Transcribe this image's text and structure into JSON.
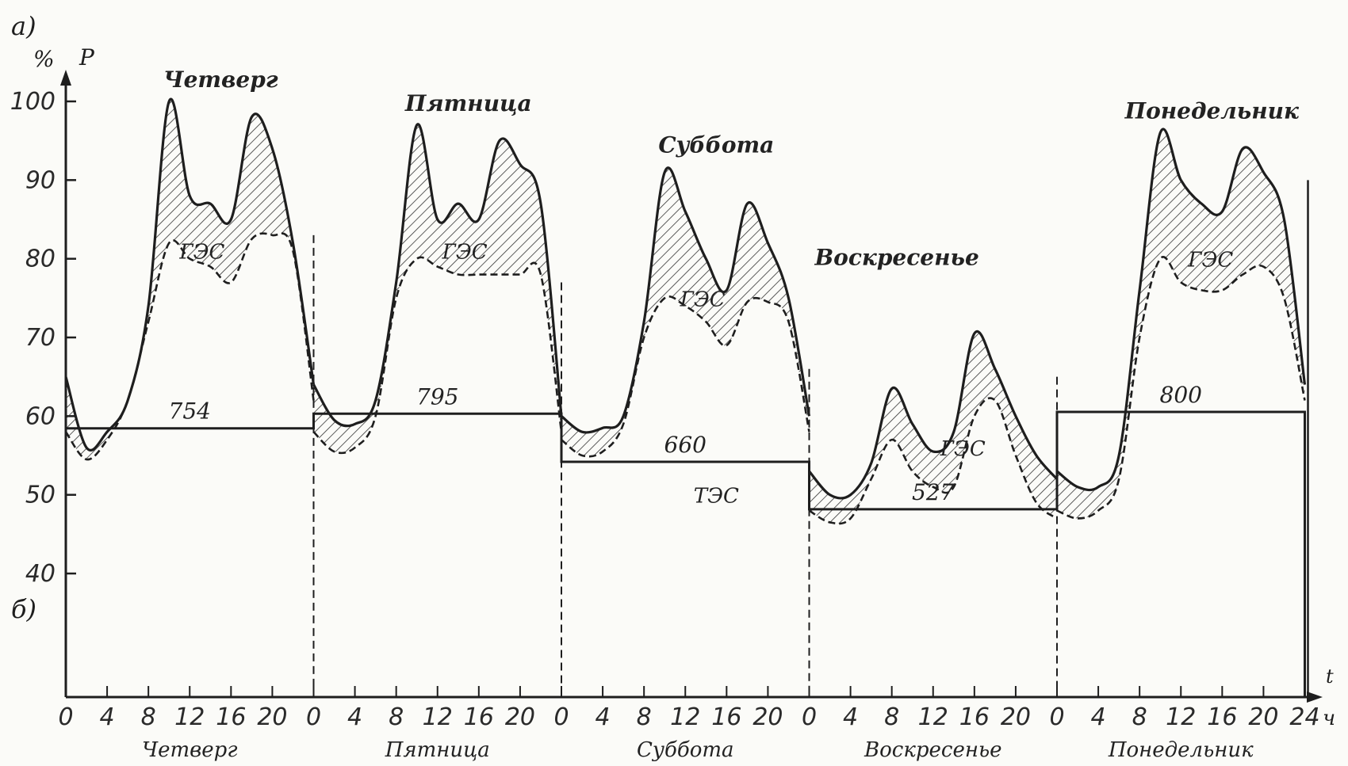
{
  "chart_data": {
    "type": "area",
    "panel_a_label": "а)",
    "panel_b_label": "б)",
    "y_unit": "%",
    "y_symbol": "P",
    "ylim": [
      40,
      100
    ],
    "y_ticks": [
      "40",
      "50",
      "60",
      "70",
      "80",
      "90",
      "100"
    ],
    "x_unit": "ч",
    "x_symbol": "t",
    "x_tick_labels": [
      "0",
      "4",
      "8",
      "12",
      "16",
      "20",
      "0",
      "4",
      "8",
      "12",
      "16",
      "20",
      "0",
      "4",
      "8",
      "12",
      "16",
      "20",
      "0",
      "4",
      "8",
      "12",
      "16",
      "20",
      "0",
      "4",
      "8",
      "12",
      "16",
      "20",
      "24"
    ],
    "area_labels": {
      "hydro": "ГЭС",
      "thermal": "ТЭС"
    },
    "grid": false,
    "days": [
      {
        "name_top": "Четверг",
        "name_bottom": "Четверг",
        "energy": "754",
        "hours": [
          0,
          2,
          4,
          6,
          8,
          10,
          12,
          14,
          16,
          18,
          20,
          22,
          24
        ],
        "total": [
          65,
          56,
          58,
          62,
          74,
          100,
          88,
          87,
          85,
          98,
          94,
          82,
          64
        ],
        "thermal": [
          58,
          54.5,
          57,
          62,
          72,
          82,
          80,
          79,
          77,
          82.5,
          83,
          81,
          62
        ]
      },
      {
        "name_top": "Пятница",
        "name_bottom": "Пятница",
        "energy": "795",
        "hours": [
          0,
          2,
          4,
          6,
          8,
          10,
          12,
          14,
          16,
          18,
          20,
          22,
          24
        ],
        "total": [
          64,
          59.5,
          59,
          62,
          77,
          97,
          85,
          87,
          85,
          95,
          92,
          87,
          60
        ],
        "thermal": [
          58,
          55.5,
          56,
          60,
          75,
          80,
          79,
          78,
          78,
          78,
          78,
          78,
          58
        ]
      },
      {
        "name_top": "Суббота",
        "name_bottom": "Суббота",
        "energy": "660",
        "hours": [
          0,
          2,
          4,
          6,
          8,
          10,
          12,
          14,
          16,
          18,
          20,
          22,
          24
        ],
        "total": [
          60,
          58,
          58.5,
          60,
          72,
          91,
          86,
          80,
          76,
          87,
          82,
          75,
          60
        ],
        "thermal": [
          57,
          55,
          55.5,
          59,
          70,
          75,
          74,
          72,
          69,
          74.5,
          74.5,
          72,
          58
        ]
      },
      {
        "name_top": "Воскресенье",
        "name_bottom": "Воскресенье",
        "energy": "527",
        "hours": [
          0,
          2,
          4,
          6,
          8,
          10,
          12,
          14,
          16,
          18,
          20,
          22,
          24
        ],
        "total": [
          53,
          50,
          50,
          54,
          63.5,
          59,
          55.5,
          58,
          70.5,
          66,
          60,
          55,
          52
        ],
        "thermal": [
          48,
          46.5,
          47,
          52,
          57,
          53,
          51,
          51,
          60,
          62,
          55,
          49,
          47
        ]
      },
      {
        "name_top": "Понедельник",
        "name_bottom": "Понедельник",
        "energy": "800",
        "hours": [
          0,
          2,
          4,
          6,
          8,
          10,
          12,
          14,
          16,
          18,
          20,
          22,
          24
        ],
        "total": [
          53,
          51,
          51,
          55,
          76,
          96,
          90,
          87,
          86,
          94,
          91,
          85,
          64
        ],
        "thermal": [
          48,
          47,
          48,
          52,
          70,
          80,
          77,
          76,
          76,
          78,
          79,
          75,
          62
        ]
      }
    ],
    "energy_values": [
      754,
      795,
      660,
      527,
      800
    ],
    "energy_ylim": [
      0,
      1000
    ]
  }
}
